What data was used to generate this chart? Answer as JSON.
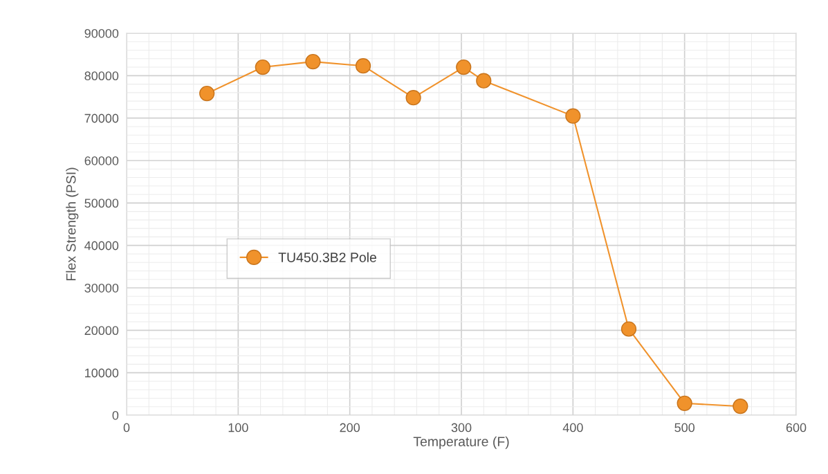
{
  "chart_data": {
    "type": "line",
    "xlabel": "Temperature (F)",
    "ylabel": "Flex Strength (PSI)",
    "x": [
      72,
      122,
      167,
      212,
      257,
      302,
      320,
      400,
      450,
      500,
      550
    ],
    "series": [
      {
        "name": "TU450.3B2 Pole",
        "color": "#f0922b",
        "values": [
          75800,
          82000,
          83300,
          82300,
          74800,
          82000,
          78800,
          70500,
          20300,
          2800,
          2100
        ]
      }
    ],
    "xlim": [
      0,
      600
    ],
    "xticks": [
      0,
      100,
      200,
      300,
      400,
      500,
      600
    ],
    "ylim": [
      0,
      90000
    ],
    "yticks": [
      0,
      10000,
      20000,
      30000,
      40000,
      50000,
      60000,
      70000,
      80000,
      90000
    ],
    "grid": true,
    "legend": "center left",
    "marker": "circle",
    "line_style": "solid"
  }
}
